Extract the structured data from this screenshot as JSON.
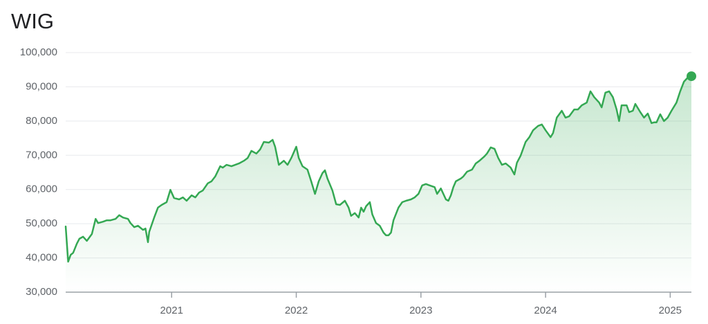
{
  "chart_data": {
    "type": "line",
    "title": "WIG",
    "color": "#34a853",
    "grid": true,
    "xlim": [
      2020.15,
      2025.17
    ],
    "xticks": [
      2021,
      2022,
      2023,
      2024,
      2025
    ],
    "ylim": [
      30000,
      100000
    ],
    "yticks": [
      {
        "value": 30000,
        "label": "30,000"
      },
      {
        "value": 40000,
        "label": "40,000"
      },
      {
        "value": 50000,
        "label": "50,000"
      },
      {
        "value": 60000,
        "label": "60,000"
      },
      {
        "value": 70000,
        "label": "70,000"
      },
      {
        "value": 80000,
        "label": "80,000"
      },
      {
        "value": 90000,
        "label": "90,000"
      },
      {
        "value": 100000,
        "label": "100,000"
      }
    ],
    "x": [
      2020.15,
      2020.17,
      2020.19,
      2020.21,
      2020.24,
      2020.26,
      2020.29,
      2020.32,
      2020.36,
      2020.39,
      2020.41,
      2020.45,
      2020.48,
      2020.51,
      2020.55,
      2020.58,
      2020.61,
      2020.65,
      2020.67,
      2020.7,
      2020.73,
      2020.77,
      2020.79,
      2020.81,
      2020.82,
      2020.86,
      2020.89,
      2020.92,
      2020.96,
      2020.99,
      2021.02,
      2021.06,
      2021.09,
      2021.12,
      2021.16,
      2021.19,
      2021.22,
      2021.25,
      2021.29,
      2021.32,
      2021.35,
      2021.39,
      2021.41,
      2021.44,
      2021.48,
      2021.51,
      2021.54,
      2021.58,
      2021.61,
      2021.64,
      2021.68,
      2021.71,
      2021.74,
      2021.78,
      2021.81,
      2021.83,
      2021.86,
      2021.9,
      2021.93,
      2021.96,
      2022.0,
      2022.02,
      2022.05,
      2022.09,
      2022.12,
      2022.15,
      2022.18,
      2022.21,
      2022.23,
      2022.25,
      2022.29,
      2022.32,
      2022.35,
      2022.39,
      2022.42,
      2022.44,
      2022.47,
      2022.5,
      2022.52,
      2022.54,
      2022.56,
      2022.59,
      2022.61,
      2022.64,
      2022.67,
      2022.7,
      2022.72,
      2022.74,
      2022.76,
      2022.78,
      2022.82,
      2022.85,
      2022.88,
      2022.92,
      2022.95,
      2022.98,
      2023.01,
      2023.04,
      2023.07,
      2023.11,
      2023.13,
      2023.16,
      2023.2,
      2023.22,
      2023.24,
      2023.26,
      2023.28,
      2023.32,
      2023.34,
      2023.37,
      2023.41,
      2023.44,
      2023.47,
      2023.51,
      2023.53,
      2023.56,
      2023.59,
      2023.62,
      2023.65,
      2023.68,
      2023.72,
      2023.75,
      2023.77,
      2023.8,
      2023.84,
      2023.87,
      2023.9,
      2023.94,
      2023.97,
      2024.0,
      2024.04,
      2024.06,
      2024.09,
      2024.13,
      2024.16,
      2024.19,
      2024.23,
      2024.26,
      2024.29,
      2024.33,
      2024.36,
      2024.39,
      2024.43,
      2024.45,
      2024.48,
      2024.51,
      2024.54,
      2024.57,
      2024.59,
      2024.61,
      2024.65,
      2024.67,
      2024.7,
      2024.72,
      2024.76,
      2024.79,
      2024.82,
      2024.85,
      2024.87,
      2024.89,
      2024.92,
      2024.95,
      2024.98,
      2025.01,
      2025.05,
      2025.08,
      2025.11,
      2025.14,
      2025.17
    ],
    "values": [
      49200,
      38900,
      40900,
      41500,
      44200,
      45600,
      46200,
      45000,
      47000,
      51400,
      50200,
      50600,
      51000,
      51000,
      51400,
      52500,
      51800,
      51400,
      50200,
      49000,
      49400,
      48200,
      48600,
      44600,
      47600,
      51800,
      54700,
      55500,
      56300,
      59900,
      57500,
      57100,
      57700,
      56700,
      58300,
      57700,
      59100,
      59700,
      61800,
      62400,
      63800,
      66800,
      66400,
      67200,
      66800,
      67200,
      67600,
      68400,
      69200,
      71300,
      70500,
      71700,
      73900,
      73700,
      74500,
      72500,
      67200,
      68400,
      67200,
      69200,
      72500,
      69200,
      66800,
      65800,
      62400,
      58700,
      62400,
      64800,
      65600,
      63200,
      59700,
      55700,
      55500,
      56700,
      54700,
      52300,
      53100,
      51800,
      54700,
      53500,
      55100,
      56300,
      52700,
      50200,
      49400,
      47400,
      46600,
      46600,
      47400,
      51000,
      54700,
      56300,
      56700,
      57100,
      57700,
      58700,
      61200,
      61600,
      61200,
      60700,
      58700,
      60300,
      57100,
      56700,
      58300,
      60700,
      62400,
      63200,
      63800,
      65200,
      65800,
      67600,
      68400,
      69700,
      70500,
      72300,
      71900,
      69200,
      67200,
      67600,
      66400,
      64400,
      67800,
      69900,
      73900,
      75300,
      77300,
      78600,
      79000,
      77300,
      75300,
      76500,
      81000,
      83000,
      81000,
      81400,
      83400,
      83400,
      84600,
      85400,
      88700,
      87000,
      85400,
      84000,
      88300,
      88700,
      87000,
      83400,
      80000,
      84600,
      84600,
      82600,
      83000,
      85000,
      82600,
      81000,
      82200,
      79400,
      79600,
      79600,
      82000,
      80000,
      81000,
      83000,
      85400,
      88700,
      91500,
      92700,
      93100
    ]
  }
}
